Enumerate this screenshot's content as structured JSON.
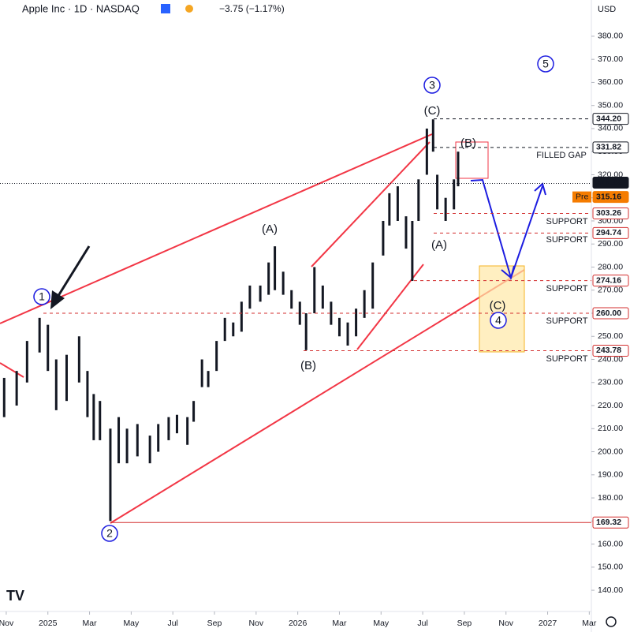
{
  "chart_data": {
    "type": "ohlc",
    "title": "Apple Inc · 1D · NASDAQ",
    "change": "−3.75 (−1.17%)",
    "currency": "USD",
    "xlim": [
      -0.3,
      28.1
    ],
    "xticks": [
      {
        "value": 0,
        "label": "Nov"
      },
      {
        "value": 2,
        "label": "2025"
      },
      {
        "value": 4,
        "label": "Mar"
      },
      {
        "value": 6,
        "label": "May"
      },
      {
        "value": 8,
        "label": "Jul"
      },
      {
        "value": 10,
        "label": "Sep"
      },
      {
        "value": 12,
        "label": "Nov"
      },
      {
        "value": 14,
        "label": "2026"
      },
      {
        "value": 16,
        "label": "Mar"
      },
      {
        "value": 18,
        "label": "May"
      },
      {
        "value": 20,
        "label": "Jul"
      },
      {
        "value": 22,
        "label": "Sep"
      },
      {
        "value": 24,
        "label": "Nov"
      },
      {
        "value": 26,
        "label": "2027"
      },
      {
        "value": 28,
        "label": "Mar"
      }
    ],
    "ylim": [
      130.8,
      395.7
    ],
    "yticks": [
      {
        "value": 140,
        "label": "140.00"
      },
      {
        "value": 150,
        "label": "150.00"
      },
      {
        "value": 160,
        "label": "160.00"
      },
      {
        "value": 170,
        "label": "170.00"
      },
      {
        "value": 180,
        "label": "180.00"
      },
      {
        "value": 190,
        "label": "190.00"
      },
      {
        "value": 200,
        "label": "200.00"
      },
      {
        "value": 210,
        "label": "210.00"
      },
      {
        "value": 220,
        "label": "220.00"
      },
      {
        "value": 230,
        "label": "230.00"
      },
      {
        "value": 240,
        "label": "240.00"
      },
      {
        "value": 250,
        "label": "250.00"
      },
      {
        "value": 260,
        "label": "260.00"
      },
      {
        "value": 270,
        "label": "270.00"
      },
      {
        "value": 280,
        "label": "280.00"
      },
      {
        "value": 290,
        "label": "290.00"
      },
      {
        "value": 300,
        "label": "300.00"
      },
      {
        "value": 310,
        "label": "310.00"
      },
      {
        "value": 320,
        "label": "320.00"
      },
      {
        "value": 330,
        "label": "330.00"
      },
      {
        "value": 340,
        "label": "340.00"
      },
      {
        "value": 350,
        "label": "350.00"
      },
      {
        "value": 360,
        "label": "360.00"
      },
      {
        "value": 370,
        "label": "370.00"
      },
      {
        "value": 380,
        "label": "380.00"
      }
    ],
    "color": "#131722",
    "x": [
      -0.1,
      0.5,
      1.0,
      1.6,
      2.0,
      2.4,
      2.9,
      3.5,
      3.9,
      4.2,
      4.5,
      5.0,
      5.4,
      5.8,
      6.3,
      6.9,
      7.3,
      7.8,
      8.2,
      8.7,
      9.0,
      9.4,
      9.7,
      10.1,
      10.5,
      10.9,
      11.3,
      11.7,
      12.2,
      12.6,
      12.9,
      13.3,
      13.7,
      14.1,
      14.4,
      14.8,
      15.2,
      15.6,
      16.0,
      16.4,
      16.8,
      17.2,
      17.6,
      18.1,
      18.4,
      18.8,
      19.2,
      19.5,
      19.8,
      20.2,
      20.5,
      20.7,
      21.1,
      21.5,
      21.7
    ],
    "low": [
      215,
      220,
      230,
      243,
      235,
      218,
      222,
      230,
      215,
      205,
      205,
      170,
      195,
      195,
      198,
      195,
      200,
      205,
      208,
      203,
      213,
      228,
      228,
      235,
      248,
      250,
      252,
      262,
      265,
      268,
      270,
      268,
      262,
      255,
      244,
      260,
      262,
      255,
      250,
      246,
      250,
      258,
      262,
      285,
      298,
      300,
      288,
      274,
      300,
      320,
      330,
      305,
      300,
      305,
      315
    ],
    "high": [
      232,
      235,
      248,
      258,
      255,
      240,
      242,
      250,
      235,
      225,
      222,
      210,
      215,
      210,
      212,
      207,
      212,
      215,
      216,
      215,
      222,
      240,
      235,
      248,
      258,
      256,
      265,
      272,
      272,
      282,
      289,
      278,
      270,
      265,
      260,
      280,
      272,
      265,
      258,
      256,
      262,
      270,
      282,
      300,
      312,
      315,
      302,
      300,
      318,
      340,
      344,
      320,
      310,
      318,
      330
    ],
    "levels": [
      {
        "value": 344.2,
        "label": "344.20",
        "color": "#131722"
      },
      {
        "value": 331.82,
        "label": "331.82",
        "color": "#131722"
      },
      {
        "value": 316.22,
        "label": "316.22",
        "color": "#131722"
      },
      {
        "value": 315.16,
        "label": "315.16",
        "color": "#f57c00"
      },
      {
        "value": 303.26,
        "label": "303.26",
        "color": "#d32f2f"
      },
      {
        "value": 294.74,
        "label": "294.74",
        "color": "#d32f2f"
      },
      {
        "value": 274.16,
        "label": "274.16",
        "color": "#d32f2f"
      },
      {
        "value": 260,
        "label": "260.00",
        "color": "#d32f2f"
      },
      {
        "value": 243.78,
        "label": "243.78",
        "color": "#d32f2f"
      },
      {
        "value": 169.32,
        "label": "169.32",
        "color": "#d32f2f"
      }
    ],
    "pre_label": "Pre",
    "annotations": [
      "1",
      "2",
      "3",
      "4",
      "5",
      "(C)",
      "(B)",
      "(A)",
      "(A)",
      "(B)",
      "(C)",
      "SUPPORT",
      "SUPPORT",
      "SUPPORT",
      "SUPPORT",
      "SUPPORT",
      "FILLED GAP"
    ]
  }
}
